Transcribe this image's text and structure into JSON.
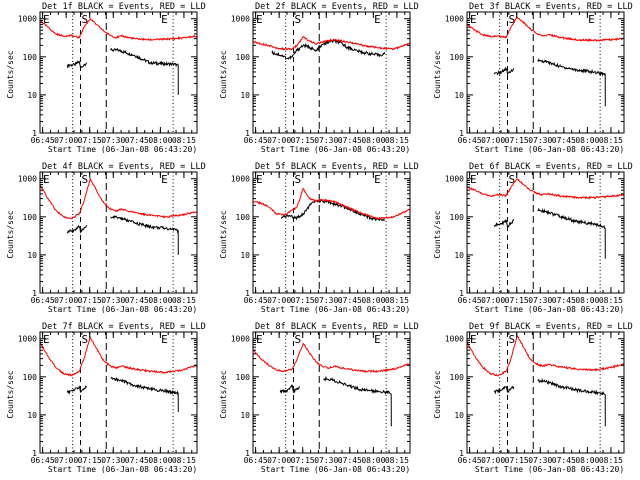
{
  "figure": {
    "title_template": "Det {det} BLACK = Events, RED = LLD",
    "xlabel": "Start Time (06-Jan-08 06:43:20)",
    "ylabel": "Counts/sec",
    "xticks": [
      "06:45",
      "07:00",
      "07:15",
      "07:30",
      "07:45",
      "08:00",
      "08:15"
    ],
    "yticks": [
      "1",
      "10",
      "100",
      "1000"
    ],
    "marker_labels": [
      "E",
      "S",
      "E"
    ],
    "colors": {
      "events": "#000000",
      "lld": "#ff0000",
      "axes": "#000000"
    }
  },
  "chart_data": [
    {
      "type": "line",
      "title": "Det 1f BLACK = Events, RED = LLD",
      "det": "1f",
      "xlabel": "Start Time (06-Jan-08 06:43:20)",
      "ylabel": "Counts/sec",
      "x_unit": "minutes after 06:43:20",
      "xlim": [
        0,
        100
      ],
      "ylim": [
        1,
        1500
      ],
      "yscale": "log",
      "markers": {
        "E1": 20.8,
        "S": 25.8,
        "S_end": 42.2,
        "E2": 84.8
      },
      "series": [
        {
          "name": "BLACK = Events",
          "color": "#000000",
          "x": [
            17.3,
            22,
            25,
            25.8,
            28,
            29.9,
            30,
            45,
            50,
            60,
            70,
            80,
            84,
            87,
            88,
            88.1
          ],
          "values": [
            60,
            62,
            75,
            50,
            62,
            70,
            null,
            150,
            150,
            110,
            70,
            65,
            65,
            62,
            60,
            10
          ]
        },
        {
          "name": "RED = LLD",
          "color": "#ff0000",
          "x": [
            0,
            5,
            10,
            15,
            20,
            25,
            28,
            32,
            36,
            40,
            44,
            48,
            52,
            60,
            70,
            80,
            90,
            100
          ],
          "values": [
            900,
            600,
            400,
            350,
            360,
            320,
            600,
            1000,
            700,
            500,
            380,
            320,
            350,
            300,
            280,
            290,
            310,
            350
          ]
        }
      ]
    },
    {
      "type": "line",
      "title": "Det 2f BLACK = Events, RED = LLD",
      "det": "2f",
      "xlabel": "Start Time (06-Jan-08 06:43:20)",
      "ylabel": "Counts/sec",
      "x_unit": "minutes after 06:43:20",
      "xlim": [
        0,
        100
      ],
      "ylim": [
        1,
        1500
      ],
      "yscale": "log",
      "markers": {
        "E1": 20.8,
        "S": 25.8,
        "S_end": 42.2,
        "E2": 84.8
      },
      "series": [
        {
          "name": "BLACK = Events",
          "color": "#000000",
          "x": [
            12,
            18,
            22,
            25,
            28,
            32,
            36,
            40,
            45,
            50,
            55,
            60,
            65,
            70,
            75,
            80,
            84
          ],
          "values": [
            130,
            110,
            90,
            100,
            150,
            200,
            180,
            140,
            220,
            260,
            240,
            180,
            150,
            130,
            120,
            110,
            120
          ]
        },
        {
          "name": "RED = LLD",
          "color": "#ff0000",
          "x": [
            0,
            5,
            10,
            15,
            20,
            25,
            28,
            32,
            36,
            40,
            44,
            48,
            52,
            60,
            70,
            80,
            90,
            100
          ],
          "values": [
            250,
            220,
            200,
            170,
            160,
            160,
            200,
            330,
            260,
            220,
            240,
            270,
            280,
            250,
            200,
            170,
            160,
            230
          ]
        }
      ]
    },
    {
      "type": "line",
      "title": "Det 3f BLACK = Events, RED = LLD",
      "det": "3f",
      "xlabel": "Start Time (06-Jan-08 06:43:20)",
      "ylabel": "Counts/sec",
      "x_unit": "minutes after 06:43:20",
      "xlim": [
        0,
        100
      ],
      "ylim": [
        1,
        1500
      ],
      "yscale": "log",
      "markers": {
        "E1": 20.8,
        "S": 25.8,
        "S_end": 42.2,
        "E2": 84.8
      },
      "series": [
        {
          "name": "BLACK = Events",
          "color": "#000000",
          "x": [
            17.3,
            22,
            25,
            25.8,
            28,
            29.9,
            30,
            45,
            50,
            60,
            70,
            80,
            84,
            87,
            88,
            88.1
          ],
          "values": [
            35,
            40,
            48,
            35,
            42,
            50,
            null,
            80,
            75,
            55,
            45,
            40,
            38,
            36,
            35,
            5
          ]
        },
        {
          "name": "RED = LLD",
          "color": "#ff0000",
          "x": [
            0,
            5,
            10,
            15,
            20,
            25,
            28,
            32,
            36,
            40,
            44,
            48,
            52,
            60,
            70,
            80,
            90,
            100
          ],
          "values": [
            700,
            500,
            380,
            340,
            350,
            330,
            600,
            1100,
            800,
            550,
            420,
            360,
            380,
            320,
            280,
            270,
            280,
            300
          ]
        }
      ]
    },
    {
      "type": "line",
      "title": "Det 4f BLACK = Events, RED = LLD",
      "det": "4f",
      "xlabel": "Start Time (06-Jan-08 06:43:20)",
      "ylabel": "Counts/sec",
      "x_unit": "minutes after 06:43:20",
      "xlim": [
        0,
        100
      ],
      "ylim": [
        1,
        1500
      ],
      "yscale": "log",
      "markers": {
        "E1": 20.8,
        "S": 25.8,
        "S_end": 42.2,
        "E2": 84.8
      },
      "series": [
        {
          "name": "BLACK = Events",
          "color": "#000000",
          "x": [
            17.3,
            22,
            25,
            25.8,
            28,
            29.9,
            30,
            45,
            50,
            60,
            70,
            80,
            84,
            87,
            88,
            88.1
          ],
          "values": [
            40,
            45,
            55,
            40,
            50,
            60,
            null,
            100,
            95,
            70,
            55,
            50,
            48,
            45,
            42,
            10
          ]
        },
        {
          "name": "RED = LLD",
          "color": "#ff0000",
          "x": [
            0,
            5,
            10,
            15,
            20,
            25,
            28,
            32,
            36,
            40,
            44,
            48,
            52,
            60,
            70,
            80,
            90,
            100
          ],
          "values": [
            700,
            300,
            150,
            100,
            90,
            120,
            250,
            1000,
            500,
            250,
            170,
            140,
            160,
            130,
            110,
            100,
            110,
            140
          ]
        }
      ]
    },
    {
      "type": "line",
      "title": "Det 5f BLACK = Events, RED = LLD",
      "det": "5f",
      "xlabel": "Start Time (06-Jan-08 06:43:20)",
      "ylabel": "Counts/sec",
      "x_unit": "minutes after 06:43:20",
      "xlim": [
        0,
        100
      ],
      "ylim": [
        1,
        1500
      ],
      "yscale": "log",
      "markers": {
        "E1": 20.8,
        "S": 25.8,
        "S_end": 42.2,
        "E2": 84.8
      },
      "series": [
        {
          "name": "BLACK = Events",
          "color": "#000000",
          "x": [
            18,
            22,
            25,
            28,
            32,
            36,
            40,
            45,
            50,
            55,
            60,
            65,
            70,
            75,
            80,
            84
          ],
          "values": [
            90,
            110,
            100,
            95,
            120,
            200,
            260,
            250,
            230,
            200,
            170,
            140,
            110,
            90,
            85,
            80
          ]
        },
        {
          "name": "RED = LLD",
          "color": "#ff0000",
          "x": [
            0,
            5,
            10,
            15,
            20,
            25,
            28,
            32,
            36,
            40,
            44,
            48,
            52,
            60,
            70,
            80,
            90,
            100
          ],
          "values": [
            250,
            230,
            180,
            120,
            110,
            150,
            180,
            550,
            300,
            260,
            280,
            270,
            250,
            180,
            120,
            90,
            100,
            160
          ]
        }
      ]
    },
    {
      "type": "line",
      "title": "Det 6f BLACK = Events, RED = LLD",
      "det": "6f",
      "xlabel": "Start Time (06-Jan-08 06:43:20)",
      "ylabel": "Counts/sec",
      "x_unit": "minutes after 06:43:20",
      "xlim": [
        0,
        100
      ],
      "ylim": [
        1,
        1500
      ],
      "yscale": "log",
      "markers": {
        "E1": 20.8,
        "S": 25.8,
        "S_end": 42.2,
        "E2": 84.8
      },
      "series": [
        {
          "name": "BLACK = Events",
          "color": "#000000",
          "x": [
            17.3,
            22,
            25,
            25.8,
            28,
            29.9,
            30,
            45,
            50,
            60,
            70,
            80,
            84,
            87,
            88,
            88.1
          ],
          "values": [
            60,
            65,
            80,
            55,
            70,
            80,
            null,
            150,
            140,
            100,
            75,
            65,
            60,
            55,
            50,
            8
          ]
        },
        {
          "name": "RED = LLD",
          "color": "#ff0000",
          "x": [
            0,
            5,
            10,
            15,
            20,
            25,
            28,
            32,
            36,
            40,
            44,
            48,
            52,
            60,
            70,
            80,
            90,
            100
          ],
          "values": [
            600,
            500,
            400,
            350,
            380,
            360,
            600,
            1000,
            700,
            500,
            420,
            380,
            400,
            350,
            320,
            320,
            340,
            380
          ]
        }
      ]
    },
    {
      "type": "line",
      "title": "Det 7f BLACK = Events, RED = LLD",
      "det": "7f",
      "xlabel": "Start Time (06-Jan-08 06:43:20)",
      "ylabel": "Counts/sec",
      "x_unit": "minutes after 06:43:20",
      "xlim": [
        0,
        100
      ],
      "ylim": [
        1,
        1500
      ],
      "yscale": "log",
      "markers": {
        "E1": 20.8,
        "S": 25.8,
        "S_end": 42.2,
        "E2": 84.8
      },
      "series": [
        {
          "name": "BLACK = Events",
          "color": "#000000",
          "x": [
            17.3,
            22,
            25,
            25.8,
            28,
            29.9,
            30,
            45,
            50,
            60,
            70,
            80,
            84,
            87,
            88,
            88.1
          ],
          "values": [
            40,
            45,
            55,
            40,
            50,
            55,
            null,
            90,
            85,
            60,
            48,
            42,
            40,
            38,
            36,
            12
          ]
        },
        {
          "name": "RED = LLD",
          "color": "#ff0000",
          "x": [
            0,
            5,
            10,
            15,
            20,
            25,
            28,
            32,
            36,
            40,
            44,
            48,
            52,
            60,
            70,
            80,
            90,
            100
          ],
          "values": [
            800,
            350,
            180,
            120,
            110,
            140,
            300,
            1100,
            550,
            280,
            200,
            170,
            190,
            160,
            140,
            130,
            150,
            200
          ]
        }
      ]
    },
    {
      "type": "line",
      "title": "Det 8f BLACK = Events, RED = LLD",
      "det": "8f",
      "xlabel": "Start Time (06-Jan-08 06:43:20)",
      "ylabel": "Counts/sec",
      "x_unit": "minutes after 06:43:20",
      "xlim": [
        0,
        100
      ],
      "ylim": [
        1,
        1500
      ],
      "yscale": "log",
      "markers": {
        "E1": 20.8,
        "S": 25.8,
        "S_end": 42.2,
        "E2": 84.8
      },
      "series": [
        {
          "name": "BLACK = Events",
          "color": "#000000",
          "x": [
            17.3,
            22,
            25,
            25.8,
            28,
            29.9,
            30,
            45,
            50,
            60,
            70,
            80,
            84,
            87,
            88,
            88.1
          ],
          "values": [
            40,
            45,
            60,
            40,
            50,
            55,
            null,
            90,
            85,
            60,
            45,
            42,
            40,
            38,
            35,
            5
          ]
        },
        {
          "name": "RED = LLD",
          "color": "#ff0000",
          "x": [
            0,
            5,
            10,
            15,
            20,
            25,
            28,
            32,
            36,
            40,
            44,
            48,
            52,
            60,
            70,
            80,
            90,
            100
          ],
          "values": [
            500,
            300,
            200,
            150,
            140,
            160,
            280,
            750,
            420,
            250,
            190,
            170,
            190,
            160,
            140,
            140,
            160,
            220
          ]
        }
      ]
    },
    {
      "type": "line",
      "title": "Det 9f BLACK = Events, RED = LLD",
      "det": "9f",
      "xlabel": "Start Time (06-Jan-08 06:43:20)",
      "ylabel": "Counts/sec",
      "x_unit": "minutes after 06:43:20",
      "xlim": [
        0,
        100
      ],
      "ylim": [
        1,
        1500
      ],
      "yscale": "log",
      "markers": {
        "E1": 20.8,
        "S": 25.8,
        "S_end": 42.2,
        "E2": 84.8
      },
      "series": [
        {
          "name": "BLACK = Events",
          "color": "#000000",
          "x": [
            17.3,
            22,
            25,
            25.8,
            28,
            29.9,
            30,
            45,
            50,
            60,
            70,
            80,
            84,
            87,
            88,
            88.1
          ],
          "values": [
            40,
            45,
            55,
            40,
            50,
            55,
            null,
            80,
            75,
            55,
            45,
            40,
            38,
            36,
            34,
            5
          ]
        },
        {
          "name": "RED = LLD",
          "color": "#ff0000",
          "x": [
            0,
            5,
            10,
            15,
            20,
            25,
            28,
            32,
            36,
            40,
            44,
            48,
            52,
            60,
            70,
            80,
            90,
            100
          ],
          "values": [
            800,
            350,
            180,
            120,
            110,
            140,
            300,
            1200,
            600,
            300,
            220,
            190,
            210,
            180,
            160,
            150,
            170,
            220
          ]
        }
      ]
    }
  ]
}
